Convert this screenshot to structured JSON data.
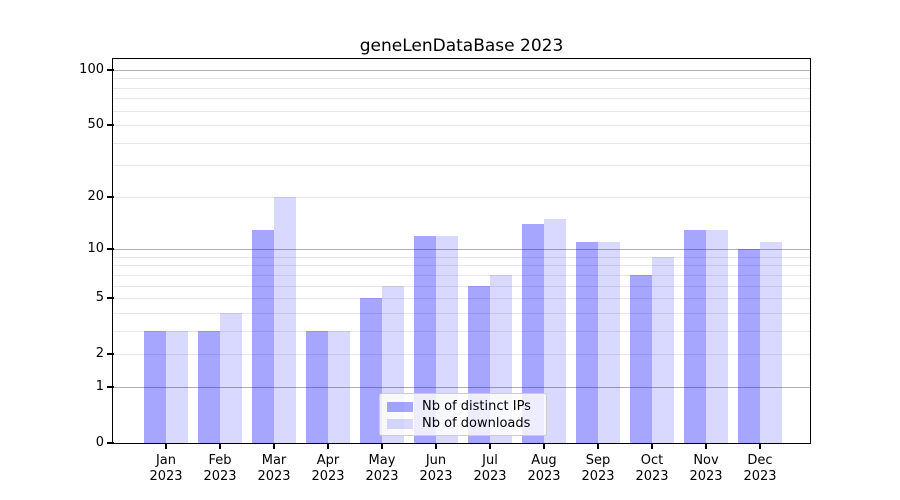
{
  "chart_data": {
    "type": "bar",
    "title": "geneLenDataBase 2023",
    "categories": [
      "Jan",
      "Feb",
      "Mar",
      "Apr",
      "May",
      "Jun",
      "Jul",
      "Aug",
      "Sep",
      "Oct",
      "Nov",
      "Dec"
    ],
    "category_year": "2023",
    "series": [
      {
        "name": "Nb of distinct IPs",
        "color": "rgba(0,0,255,0.35)",
        "values": [
          3,
          3,
          13,
          3,
          5,
          12,
          6,
          14,
          11,
          7,
          13,
          10
        ]
      },
      {
        "name": "Nb of downloads",
        "color": "rgba(0,0,255,0.15)",
        "values": [
          3,
          4,
          20,
          3,
          6,
          12,
          7,
          15,
          11,
          9,
          13,
          11
        ]
      }
    ],
    "yscale": "log1p",
    "ylim": [
      0,
      114.7
    ],
    "yticks": [
      0,
      1,
      2,
      5,
      10,
      20,
      50,
      100
    ],
    "major_gridlines": [
      1,
      10,
      100
    ],
    "minor_gridlines": [
      2,
      3,
      4,
      5,
      6,
      7,
      8,
      9,
      20,
      30,
      40,
      50,
      60,
      70,
      80,
      90
    ],
    "grid": true,
    "xlabel": "",
    "ylabel": "",
    "legend_position": "lower-center"
  },
  "style": {
    "background": "#ffffff",
    "major_grid_color": "#b0b0b0",
    "minor_grid_color": "#e7e7e7",
    "spine_color": "#000000",
    "text_color": "#000000",
    "legend_border_color": "#cccccc",
    "legend_background": "rgba(255,255,255,0.8)"
  }
}
